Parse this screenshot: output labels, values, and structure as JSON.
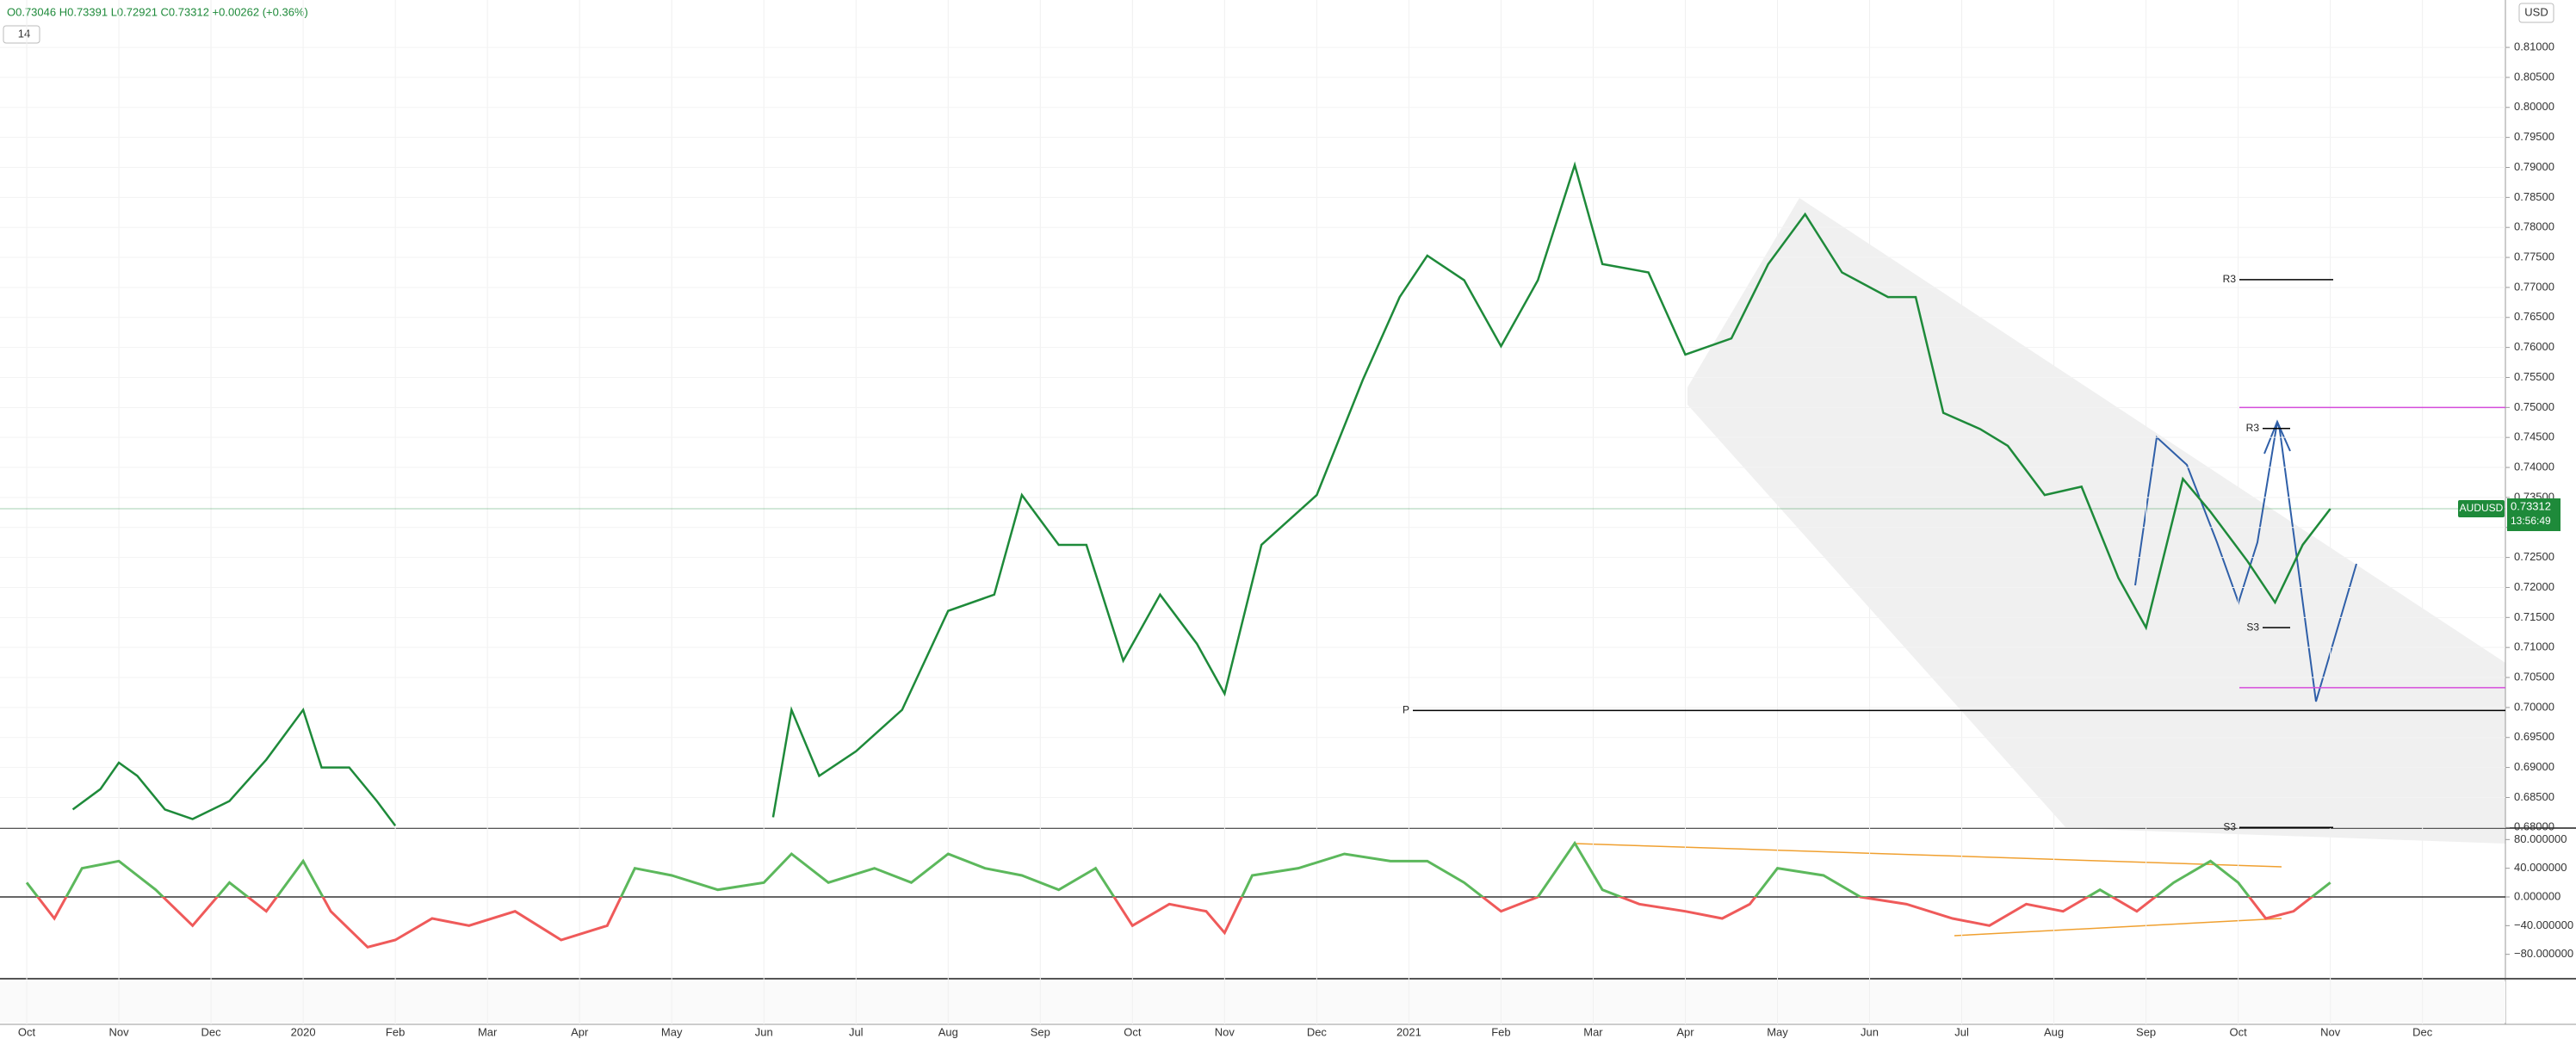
{
  "header": {
    "ohlc": "O0.73046 H0.73391 L0.72921 C0.73312 +0.00262 (+0.36%)",
    "interval": "14",
    "currency": "USD"
  },
  "chart_data": [
    {
      "type": "line",
      "grid": true,
      "xlim": [
        -0.29,
        26.9
      ],
      "ylim": [
        0.6799,
        0.8179
      ],
      "xticks": [
        {
          "value": 0,
          "label": "Oct"
        },
        {
          "value": 1,
          "label": "Nov"
        },
        {
          "value": 2,
          "label": "Dec"
        },
        {
          "value": 3,
          "label": "2020"
        },
        {
          "value": 4,
          "label": "Feb"
        },
        {
          "value": 5,
          "label": "Mar"
        },
        {
          "value": 6,
          "label": "Apr"
        },
        {
          "value": 7,
          "label": "May"
        },
        {
          "value": 8,
          "label": "Jun"
        },
        {
          "value": 9,
          "label": "Jul"
        },
        {
          "value": 10,
          "label": "Aug"
        },
        {
          "value": 11,
          "label": "Sep"
        },
        {
          "value": 12,
          "label": "Oct"
        },
        {
          "value": 13,
          "label": "Nov"
        },
        {
          "value": 14,
          "label": "Dec"
        },
        {
          "value": 15,
          "label": "2021"
        },
        {
          "value": 16,
          "label": "Feb"
        },
        {
          "value": 17,
          "label": "Mar"
        },
        {
          "value": 18,
          "label": "Apr"
        },
        {
          "value": 19,
          "label": "May"
        },
        {
          "value": 20,
          "label": "Jun"
        },
        {
          "value": 21,
          "label": "Jul"
        },
        {
          "value": 22,
          "label": "Aug"
        },
        {
          "value": 23,
          "label": "Sep"
        },
        {
          "value": 24,
          "label": "Oct"
        },
        {
          "value": 25,
          "label": "Nov"
        },
        {
          "value": 26,
          "label": "Dec"
        }
      ],
      "yticks": [
        {
          "value": 0.68,
          "label": "0.68000"
        },
        {
          "value": 0.685,
          "label": "0.68500"
        },
        {
          "value": 0.69,
          "label": "0.69000"
        },
        {
          "value": 0.695,
          "label": "0.69500"
        },
        {
          "value": 0.7,
          "label": "0.70000"
        },
        {
          "value": 0.705,
          "label": "0.70500"
        },
        {
          "value": 0.71,
          "label": "0.71000"
        },
        {
          "value": 0.715,
          "label": "0.71500"
        },
        {
          "value": 0.72,
          "label": "0.72000"
        },
        {
          "value": 0.725,
          "label": "0.72500"
        },
        {
          "value": 0.73,
          "label": "0.73000"
        },
        {
          "value": 0.735,
          "label": "0.73500"
        },
        {
          "value": 0.74,
          "label": "0.74000"
        },
        {
          "value": 0.745,
          "label": "0.74500"
        },
        {
          "value": 0.75,
          "label": "0.75000"
        },
        {
          "value": 0.755,
          "label": "0.75500"
        },
        {
          "value": 0.76,
          "label": "0.76000"
        },
        {
          "value": 0.765,
          "label": "0.76500"
        },
        {
          "value": 0.77,
          "label": "0.77000"
        },
        {
          "value": 0.775,
          "label": "0.77500"
        },
        {
          "value": 0.78,
          "label": "0.78000"
        },
        {
          "value": 0.785,
          "label": "0.78500"
        },
        {
          "value": 0.79,
          "label": "0.79000"
        },
        {
          "value": 0.795,
          "label": "0.79500"
        },
        {
          "value": 0.8,
          "label": "0.80000"
        },
        {
          "value": 0.805,
          "label": "0.80500"
        },
        {
          "value": 0.81,
          "label": "0.81000"
        }
      ],
      "series": [
        {
          "name": "AUDUSD",
          "color": "#1e8a3a",
          "x": [
            0.5,
            0.8,
            1.0,
            1.2,
            1.5,
            1.8,
            2.2,
            2.6,
            3.0,
            3.2,
            3.5,
            3.8,
            4.0,
            6.0,
            8.1,
            8.3,
            8.6,
            9.0,
            9.5,
            10.0,
            10.5,
            10.8,
            11.2,
            11.5,
            11.9,
            12.3,
            12.7,
            13.0,
            13.4,
            14.0,
            14.5,
            14.9,
            15.2,
            15.6,
            16.0,
            16.4,
            16.8,
            17.1,
            17.6,
            18.0,
            18.5,
            18.9,
            19.3,
            19.7,
            20.2,
            20.5,
            20.8,
            21.2,
            21.5,
            21.9,
            22.3,
            22.7,
            23.0,
            23.4,
            23.7,
            24.1,
            24.4,
            24.7,
            25.0
          ],
          "values": [
            0.683,
            0.6864,
            0.6908,
            0.6886,
            0.683,
            0.6814,
            0.6844,
            0.6913,
            0.6996,
            0.69,
            0.69,
            0.6844,
            0.6803,
            null,
            0.6817,
            0.6996,
            0.6886,
            0.6927,
            0.6996,
            0.7161,
            0.7188,
            0.7354,
            0.7271,
            0.7271,
            0.7078,
            0.7188,
            0.7106,
            0.7023,
            0.7271,
            0.7354,
            0.7546,
            0.7684,
            0.7753,
            0.7712,
            0.7602,
            0.7712,
            0.7904,
            0.7739,
            0.7725,
            0.7588,
            0.7615,
            0.7739,
            0.7822,
            0.7725,
            0.7684,
            0.7684,
            0.7491,
            0.7464,
            0.7436,
            0.7354,
            0.7368,
            0.7216,
            0.7133,
            0.7381,
            0.7326,
            0.7244,
            0.7175,
            0.7271,
            0.7331
          ]
        }
      ],
      "last": {
        "value": 0.73312,
        "time": "13:56:49"
      },
      "levels": [
        {
          "label": "R3",
          "value": 0.7713,
          "color": "#000000"
        },
        {
          "label": "P",
          "value": 0.6995,
          "color": "#000000"
        },
        {
          "label": "S3",
          "value": 0.68,
          "color": "#000000"
        },
        {
          "label": "R3",
          "value": 0.7465,
          "color": "#000000"
        },
        {
          "label": "S3",
          "value": 0.7133,
          "color": "#000000"
        },
        {
          "value": 0.75,
          "color": "#d54cdb"
        },
        {
          "value": 0.7033,
          "color": "#d54cdb"
        }
      ]
    },
    {
      "type": "oscillator",
      "xlim": [
        -0.29,
        26.9
      ],
      "ylim": [
        -114,
        96
      ],
      "yticks": [
        {
          "value": 80,
          "label": "80.000000"
        },
        {
          "value": 40,
          "label": "40.000000"
        },
        {
          "value": 0,
          "label": "0.000000"
        },
        {
          "value": -40,
          "label": "−40.000000"
        },
        {
          "value": -80,
          "label": "−80.000000"
        }
      ],
      "colors": {
        "positive": "#5cb85c",
        "negative": "#ef5a5a"
      },
      "x": [
        0,
        0.3,
        0.6,
        1.0,
        1.4,
        1.8,
        2.2,
        2.6,
        3.0,
        3.3,
        3.7,
        4.0,
        4.4,
        4.8,
        5.3,
        5.8,
        6.3,
        6.6,
        7.0,
        7.5,
        8.0,
        8.3,
        8.7,
        9.2,
        9.6,
        10.0,
        10.4,
        10.8,
        11.2,
        11.6,
        12.0,
        12.4,
        12.8,
        13.0,
        13.3,
        13.8,
        14.3,
        14.8,
        15.2,
        15.6,
        16.0,
        16.4,
        16.8,
        17.1,
        17.5,
        18.0,
        18.4,
        18.7,
        19.0,
        19.5,
        19.9,
        20.4,
        20.9,
        21.3,
        21.7,
        22.1,
        22.5,
        22.9,
        23.3,
        23.7,
        24.0,
        24.3,
        24.6,
        25.0
      ],
      "values": [
        20,
        -30,
        40,
        50,
        10,
        -40,
        20,
        -20,
        50,
        -20,
        -70,
        -60,
        -30,
        -40,
        -20,
        -60,
        -40,
        40,
        30,
        10,
        20,
        60,
        20,
        40,
        20,
        60,
        40,
        30,
        10,
        40,
        -40,
        -10,
        -20,
        -50,
        30,
        40,
        60,
        50,
        50,
        20,
        -20,
        0,
        75,
        10,
        -10,
        -20,
        -30,
        -10,
        40,
        30,
        0,
        -10,
        -30,
        -40,
        -10,
        -20,
        10,
        -20,
        20,
        50,
        20,
        -30,
        -20,
        20
      ]
    }
  ]
}
